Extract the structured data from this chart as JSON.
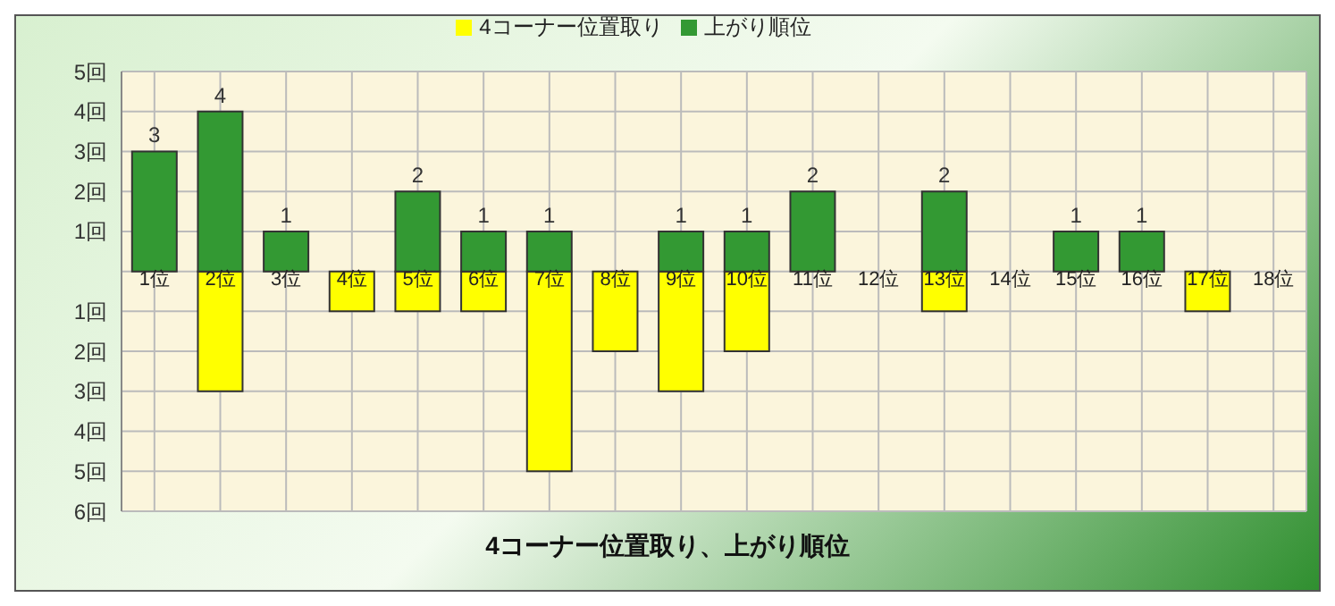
{
  "chart_data": {
    "type": "bar",
    "title": "4コーナー位置取り、上がり順位",
    "categories": [
      "1位",
      "2位",
      "3位",
      "4位",
      "5位",
      "6位",
      "7位",
      "8位",
      "9位",
      "10位",
      "11位",
      "12位",
      "13位",
      "14位",
      "15位",
      "16位",
      "17位",
      "18位"
    ],
    "series": [
      {
        "name": "4コーナー位置取り",
        "color": "#ffff00",
        "values": [
          0,
          -3,
          0,
          -1,
          -1,
          -1,
          -5,
          -2,
          -3,
          -2,
          0,
          0,
          -1,
          0,
          0,
          0,
          -1,
          0
        ]
      },
      {
        "name": "上がり順位",
        "color": "#339933",
        "values": [
          3,
          4,
          1,
          0,
          2,
          1,
          1,
          0,
          1,
          1,
          2,
          0,
          2,
          0,
          1,
          1,
          0,
          0
        ],
        "value_labels": [
          "3",
          "4",
          "1",
          null,
          "2",
          "1",
          "1",
          null,
          "1",
          "1",
          "2",
          null,
          "2",
          null,
          "1",
          "1",
          null,
          null
        ]
      }
    ],
    "stacked": true,
    "ylim": [
      -6,
      5
    ],
    "yticks": [
      {
        "value": -6,
        "label": "6回"
      },
      {
        "value": -5,
        "label": "5回"
      },
      {
        "value": -4,
        "label": "4回"
      },
      {
        "value": -3,
        "label": "3回"
      },
      {
        "value": -2,
        "label": "2回"
      },
      {
        "value": -1,
        "label": "1回"
      },
      {
        "value": 0,
        "label": null
      },
      {
        "value": 1,
        "label": "1回"
      },
      {
        "value": 2,
        "label": "2回"
      },
      {
        "value": 3,
        "label": "3回"
      },
      {
        "value": 4,
        "label": "4回"
      },
      {
        "value": 5,
        "label": "5回"
      }
    ],
    "grid": true,
    "legend": "top"
  }
}
